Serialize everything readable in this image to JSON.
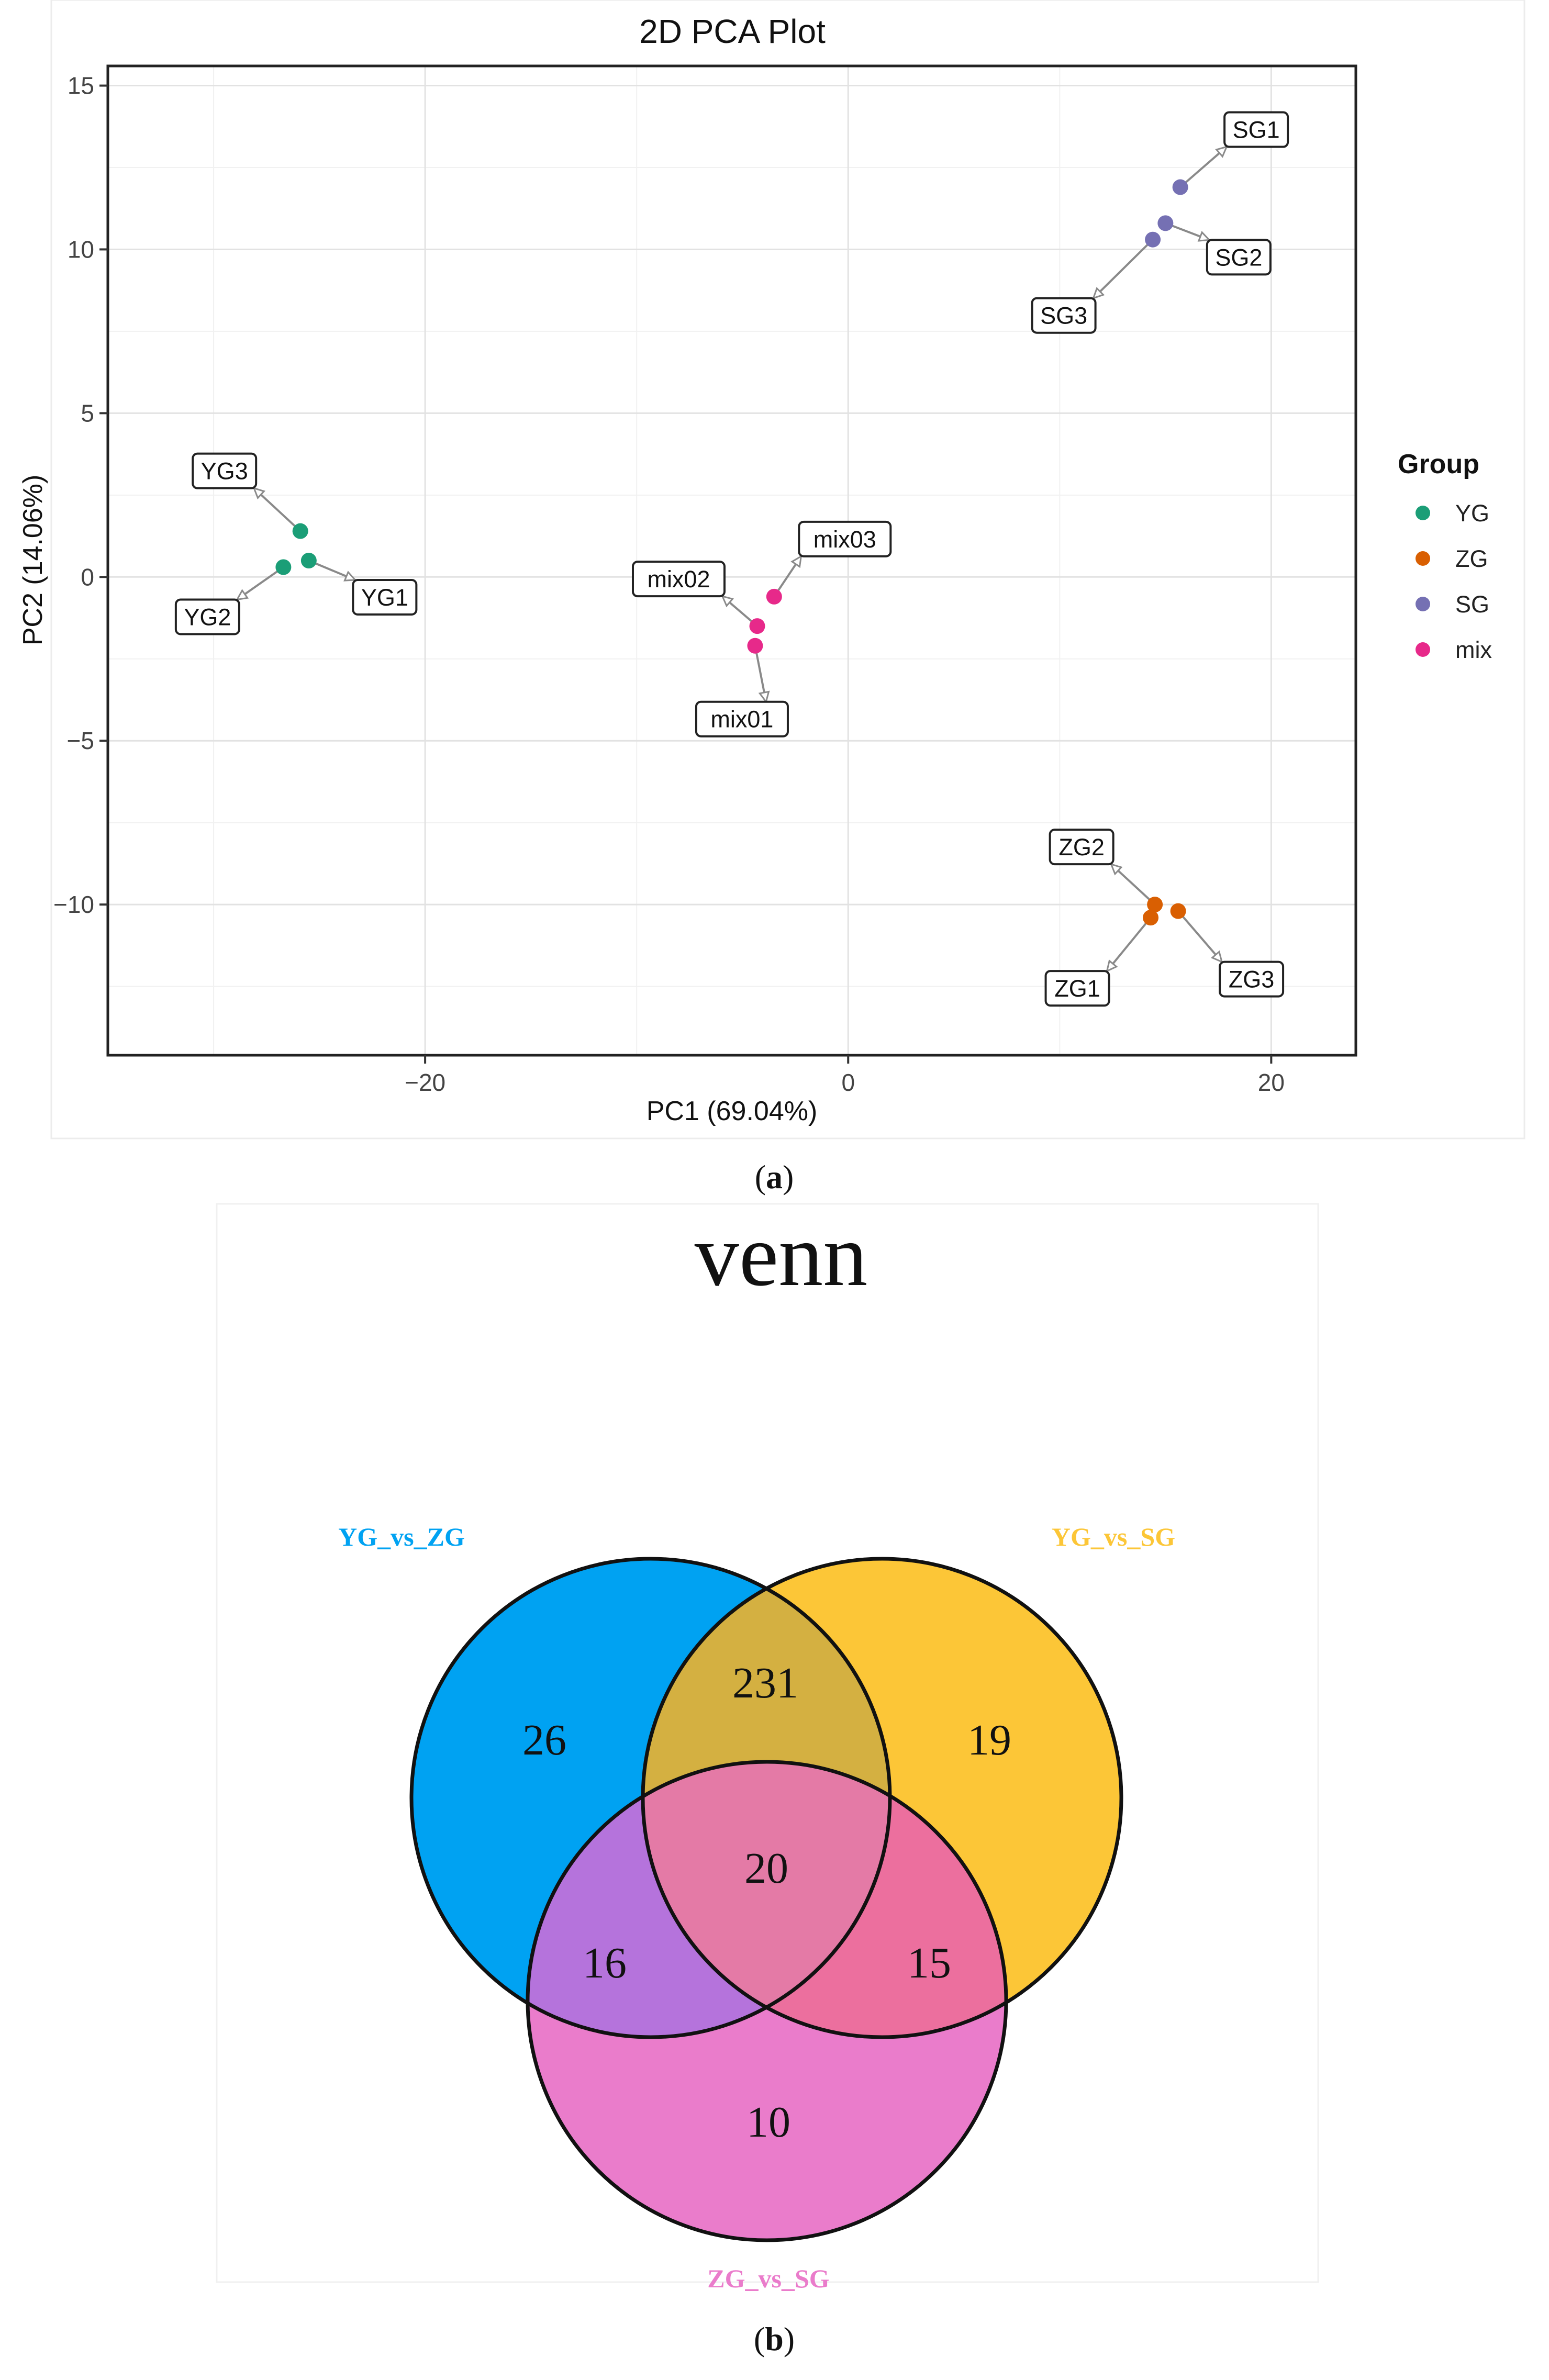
{
  "pca": {
    "chart_data": {
      "type": "scatter",
      "title": "2D PCA Plot",
      "xlabel": "PC1 (69.04%)",
      "ylabel": "PC2 (14.06%)",
      "xlim": [
        -35,
        24
      ],
      "ylim": [
        -14.6,
        15.6
      ],
      "xticks": [
        -20,
        0,
        20
      ],
      "xtick_labels": [
        "−20",
        "0",
        "20"
      ],
      "yticks": [
        15,
        10,
        5,
        0,
        -5,
        -10
      ],
      "ytick_labels": [
        "15",
        "10",
        "5",
        "0",
        "−5",
        "−10"
      ],
      "grid": true,
      "legend": {
        "title": "Group",
        "position": "right"
      },
      "series": [
        {
          "name": "YG",
          "color": "#1b9e77",
          "points": [
            {
              "label": "YG1",
              "x": -25.5,
              "y": 0.5
            },
            {
              "label": "YG2",
              "x": -26.7,
              "y": 0.3
            },
            {
              "label": "YG3",
              "x": -25.9,
              "y": 1.4
            }
          ]
        },
        {
          "name": "ZG",
          "color": "#d95f02",
          "points": [
            {
              "label": "ZG1",
              "x": 14.3,
              "y": -10.4
            },
            {
              "label": "ZG2",
              "x": 14.5,
              "y": -10.0
            },
            {
              "label": "ZG3",
              "x": 15.6,
              "y": -10.2
            }
          ]
        },
        {
          "name": "SG",
          "color": "#7570b3",
          "points": [
            {
              "label": "SG1",
              "x": 15.7,
              "y": 11.9
            },
            {
              "label": "SG2",
              "x": 15.0,
              "y": 10.8
            },
            {
              "label": "SG3",
              "x": 14.4,
              "y": 10.3
            }
          ]
        },
        {
          "name": "mix",
          "color": "#e7298a",
          "points": [
            {
              "label": "mix01",
              "x": -4.4,
              "y": -2.1
            },
            {
              "label": "mix02",
              "x": -4.3,
              "y": -1.5
            },
            {
              "label": "mix03",
              "x": -3.5,
              "y": -0.6
            }
          ]
        }
      ]
    },
    "panel_label": "a"
  },
  "venn": {
    "chart_data": {
      "type": "venn",
      "title": "venn",
      "sets": [
        {
          "name": "YG_vs_ZG",
          "color": "#00a2f2"
        },
        {
          "name": "YG_vs_SG",
          "color": "#fcc637"
        },
        {
          "name": "ZG_vs_SG",
          "color": "#ea7ccb"
        }
      ],
      "regions": [
        {
          "sets": [
            "YG_vs_ZG"
          ],
          "value": 26
        },
        {
          "sets": [
            "YG_vs_SG"
          ],
          "value": 19
        },
        {
          "sets": [
            "ZG_vs_SG"
          ],
          "value": 10
        },
        {
          "sets": [
            "YG_vs_ZG",
            "YG_vs_SG"
          ],
          "value": 231
        },
        {
          "sets": [
            "YG_vs_ZG",
            "ZG_vs_SG"
          ],
          "value": 16
        },
        {
          "sets": [
            "YG_vs_SG",
            "ZG_vs_SG"
          ],
          "value": 15
        },
        {
          "sets": [
            "YG_vs_ZG",
            "YG_vs_SG",
            "ZG_vs_SG"
          ],
          "value": 20
        }
      ],
      "region_colors": {
        "ab": "#d4b041",
        "ac": "#b573dc",
        "bc": "#ec6f9e",
        "abc": "#e47aa6"
      }
    },
    "panel_label": "b"
  }
}
